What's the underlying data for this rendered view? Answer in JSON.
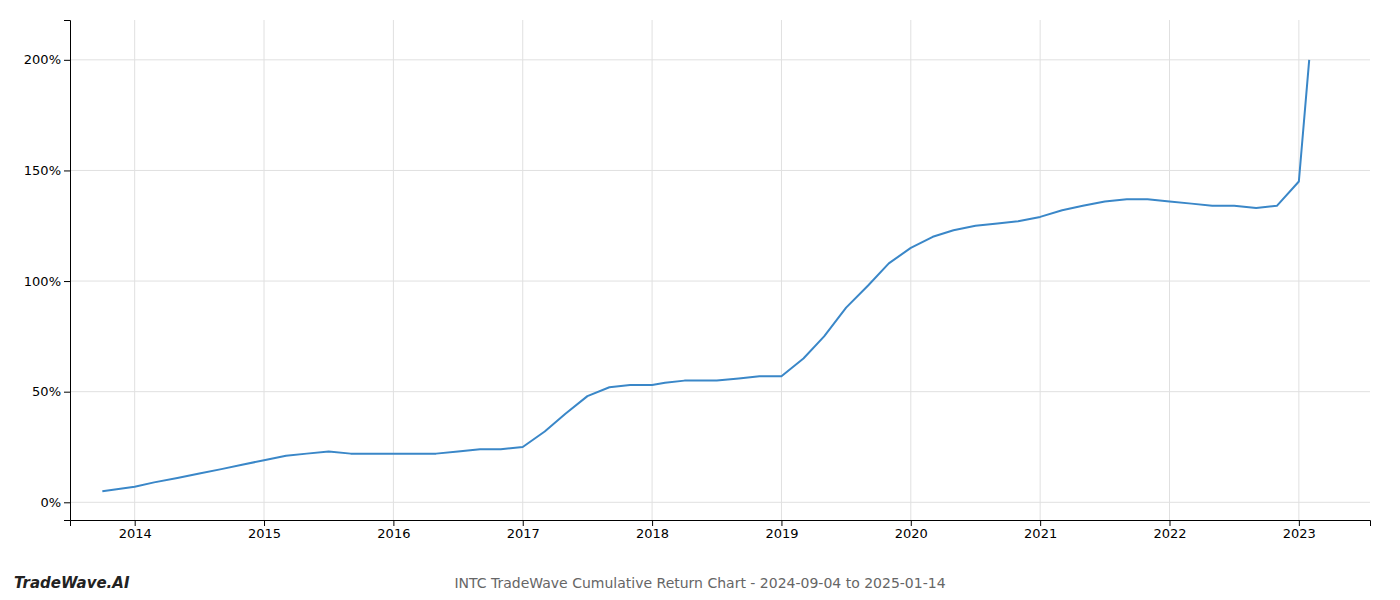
{
  "chart_data": {
    "type": "line",
    "title": "INTC TradeWave Cumulative Return Chart - 2024-09-04 to 2025-01-14",
    "annotations": [
      "TradeWave.AI"
    ],
    "x": [
      2013.75,
      2014.0,
      2014.15,
      2014.33,
      2014.5,
      2014.67,
      2014.83,
      2015.0,
      2015.17,
      2015.33,
      2015.5,
      2015.67,
      2015.83,
      2016.0,
      2016.17,
      2016.33,
      2016.5,
      2016.67,
      2016.83,
      2017.0,
      2017.17,
      2017.33,
      2017.5,
      2017.67,
      2017.83,
      2018.0,
      2018.1,
      2018.25,
      2018.5,
      2018.67,
      2018.83,
      2019.0,
      2019.17,
      2019.33,
      2019.5,
      2019.67,
      2019.83,
      2020.0,
      2020.17,
      2020.33,
      2020.5,
      2020.67,
      2020.83,
      2021.0,
      2021.17,
      2021.33,
      2021.5,
      2021.67,
      2021.83,
      2022.0,
      2022.17,
      2022.33,
      2022.5,
      2022.67,
      2022.83,
      2023.0,
      2023.08
    ],
    "values": [
      5,
      7,
      9,
      11,
      13,
      15,
      17,
      19,
      21,
      22,
      23,
      22,
      22,
      22,
      22,
      22,
      23,
      24,
      24,
      25,
      32,
      40,
      48,
      52,
      53,
      53,
      54,
      55,
      55,
      56,
      57,
      57,
      65,
      75,
      88,
      98,
      108,
      115,
      120,
      123,
      125,
      126,
      127,
      129,
      132,
      134,
      136,
      137,
      137,
      136,
      135,
      134,
      134,
      133,
      134,
      145,
      200
    ],
    "color": "#3a87c8",
    "xlim": [
      2013.5,
      2023.55
    ],
    "ylim": [
      -8,
      218
    ],
    "xticks": [
      2014,
      2015,
      2016,
      2017,
      2018,
      2019,
      2020,
      2021,
      2022,
      2023
    ],
    "yticks": [
      {
        "value": 0,
        "label": "0%"
      },
      {
        "value": 50,
        "label": "50%"
      },
      {
        "value": 100,
        "label": "100%"
      },
      {
        "value": 150,
        "label": "150%"
      },
      {
        "value": 200,
        "label": "200%"
      }
    ],
    "grid": true
  }
}
